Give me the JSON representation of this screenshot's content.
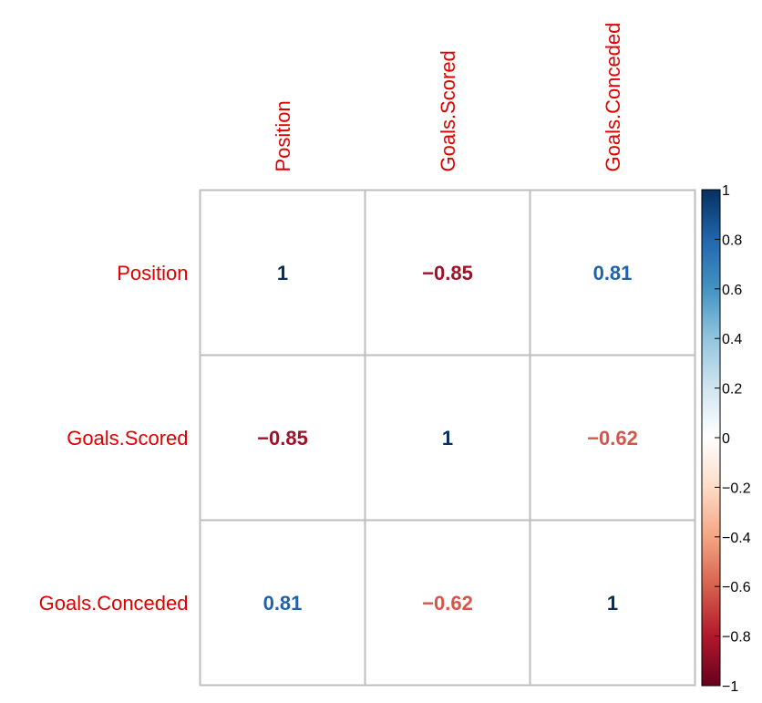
{
  "chart_data": {
    "type": "heatmap",
    "variables": [
      "Position",
      "Goals.Scored",
      "Goals.Conceded"
    ],
    "matrix": [
      [
        1,
        -0.85,
        0.81
      ],
      [
        -0.85,
        1,
        -0.62
      ],
      [
        0.81,
        -0.62,
        1
      ]
    ],
    "cell_labels": [
      [
        "1",
        "−0.85",
        "0.81"
      ],
      [
        "−0.85",
        "1",
        "−0.62"
      ],
      [
        "0.81",
        "−0.62",
        "1"
      ]
    ],
    "colorbar": {
      "range": [
        -1,
        1
      ],
      "ticks": [
        1,
        0.8,
        0.6,
        0.4,
        0.2,
        0,
        -0.2,
        -0.4,
        -0.6,
        -0.8,
        -1
      ],
      "tick_labels": [
        "1",
        "0.8",
        "0.6",
        "0.4",
        "0.2",
        "0",
        "−0.2",
        "−0.4",
        "−0.6",
        "−0.8",
        "−1"
      ]
    },
    "label_color": "#e00000",
    "grid_color": "#bebebe",
    "palette": [
      "#67001f",
      "#b2182b",
      "#d6604d",
      "#f4a582",
      "#fddbc7",
      "#ffffff",
      "#d1e5f0",
      "#92c5de",
      "#4393c3",
      "#2166ac",
      "#053061"
    ]
  }
}
